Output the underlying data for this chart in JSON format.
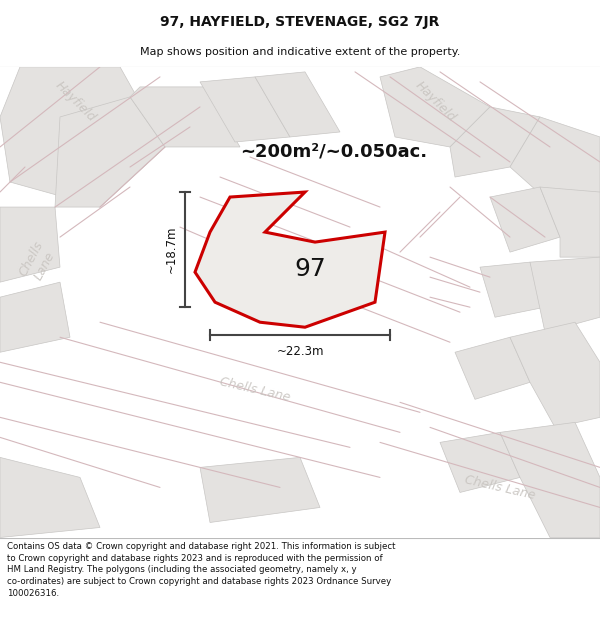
{
  "title": "97, HAYFIELD, STEVENAGE, SG2 7JR",
  "subtitle": "Map shows position and indicative extent of the property.",
  "area_text": "~200m²/~0.050ac.",
  "label_97": "97",
  "dim_height": "~18.7m",
  "dim_width": "~22.3m",
  "footnote_lines": [
    "Contains OS data © Crown copyright and database right 2021. This information is subject to Crown copyright and database rights 2023 and is reproduced with the permission of",
    "HM Land Registry. The polygons (including the associated geometry, namely x, y co-ordinates) are subject to Crown copyright and database rights 2023 Ordnance Survey",
    "100026316."
  ],
  "map_bg": "#f7f6f5",
  "road_fill": "#e8e7e5",
  "road_line": "#d4b8bc",
  "block_fill": "#e4e2e0",
  "block_edge": "#c8c6c4",
  "property_fill": "#eeece9",
  "property_edge": "#cc0000",
  "dim_color": "#444444",
  "label_color": "#c8c4c0",
  "text_color": "#111111"
}
